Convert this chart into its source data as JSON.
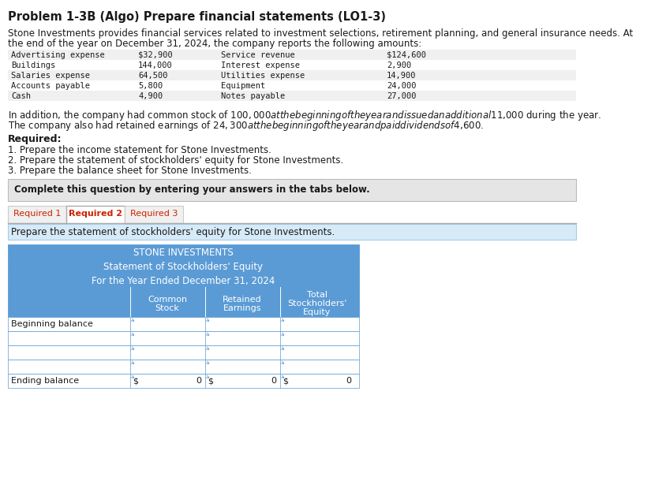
{
  "title": "Problem 1-3B (Algo) Prepare financial statements (LO1-3)",
  "intro_line1": "Stone Investments provides financial services related to investment selections, retirement planning, and general insurance needs. At",
  "intro_line2": "the end of the year on December 31, 2024, the company reports the following amounts:",
  "table_left": [
    [
      "Advertising expense",
      "$32,900",
      "Service revenue",
      "$124,600"
    ],
    [
      "Buildings",
      "144,000",
      "Interest expense",
      "2,900"
    ],
    [
      "Salaries expense",
      "64,500",
      "Utilities expense",
      "14,900"
    ],
    [
      "Accounts payable",
      "5,800",
      "Equipment",
      "24,000"
    ],
    [
      "Cash",
      "4,900",
      "Notes payable",
      "27,000"
    ]
  ],
  "addition_line1": "In addition, the company had common stock of $100,000 at the beginning of the year and issued an additional $11,000 during the year.",
  "addition_line2": "The company also had retained earnings of $24,300 at the beginning of the year and paid dividends of $4,600.",
  "required_label": "Required:",
  "required_items": [
    "1. Prepare the income statement for Stone Investments.",
    "2. Prepare the statement of stockholders' equity for Stone Investments.",
    "3. Prepare the balance sheet for Stone Investments."
  ],
  "complete_text": "Complete this question by entering your answers in the tabs below.",
  "tabs": [
    "Required 1",
    "Required 2",
    "Required 3"
  ],
  "active_tab": 1,
  "tab_instruction": "Prepare the statement of stockholders' equity for Stone Investments.",
  "statement_title1": "STONE INVESTMENTS",
  "statement_title2": "Statement of Stockholders' Equity",
  "statement_title3": "For the Year Ended December 31, 2024",
  "col_headers": [
    "",
    "Common\nStock",
    "Retained\nEarnings",
    "Total\nStockholders'\nEquity"
  ],
  "rows": [
    [
      "Beginning balance",
      "",
      "",
      ""
    ],
    [
      "",
      "",
      "",
      ""
    ],
    [
      "",
      "",
      "",
      ""
    ],
    [
      "",
      "",
      "",
      ""
    ],
    [
      "Ending balance",
      "$",
      "0",
      "$",
      "0",
      "$",
      "0"
    ]
  ],
  "bg_color": "#ffffff",
  "header_blue": "#5b9bd5",
  "light_blue": "#daeaf7",
  "gray_bg": "#e8e8e8",
  "border_color": "#5b9bd5",
  "row_stripe": "#f2f2f2"
}
